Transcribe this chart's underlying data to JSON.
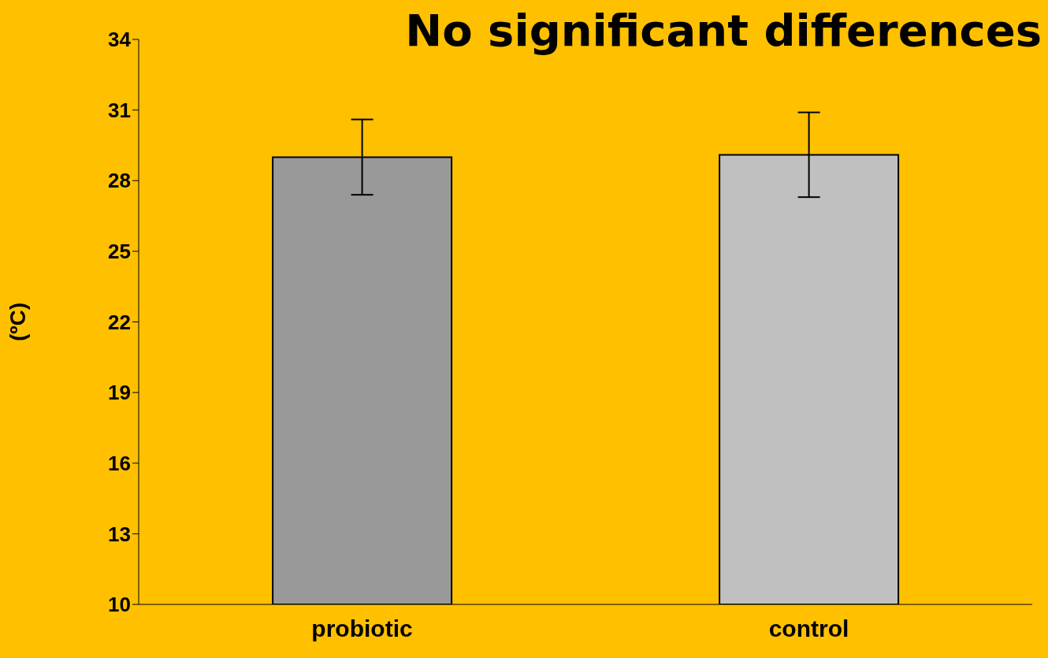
{
  "chart_data": {
    "type": "bar",
    "title": "No significant differences",
    "ylabel": "(ºC)",
    "categories": [
      "probiotic",
      "control"
    ],
    "values": [
      29.0,
      29.1
    ],
    "colors": [
      "#999999",
      "#c0c0c0"
    ],
    "errors": [
      1.6,
      1.8
    ],
    "ylim": [
      10,
      34
    ],
    "yticks": [
      10,
      13,
      16,
      19,
      22,
      25,
      28,
      31,
      34
    ]
  }
}
